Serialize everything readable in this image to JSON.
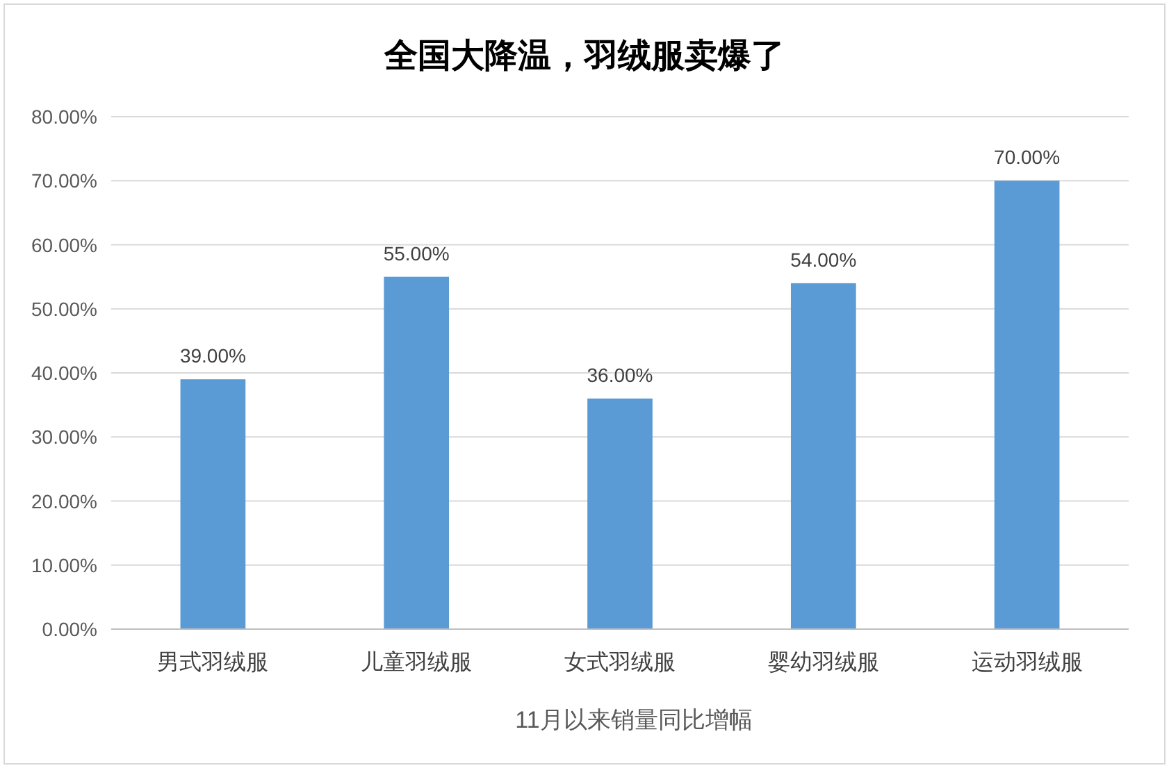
{
  "chart_data": {
    "type": "bar",
    "title": "全国大降温，羽绒服卖爆了",
    "xlabel": "11月以来销量同比增幅",
    "categories": [
      "男式羽绒服",
      "儿童羽绒服",
      "女式羽绒服",
      "婴幼羽绒服",
      "运动羽绒服"
    ],
    "values": [
      39,
      55,
      36,
      54,
      70
    ],
    "color": "#5b9bd5",
    "value_labels": [
      "39.00%",
      "55.00%",
      "36.00%",
      "54.00%",
      "70.00%"
    ],
    "ylim": [
      0,
      80
    ],
    "yticks": [
      {
        "value": 0,
        "label": "0.00%"
      },
      {
        "value": 10,
        "label": "10.00%"
      },
      {
        "value": 20,
        "label": "20.00%"
      },
      {
        "value": 30,
        "label": "30.00%"
      },
      {
        "value": 40,
        "label": "40.00%"
      },
      {
        "value": 50,
        "label": "50.00%"
      },
      {
        "value": 60,
        "label": "60.00%"
      },
      {
        "value": 70,
        "label": "70.00%"
      },
      {
        "value": 80,
        "label": "80.00%"
      }
    ],
    "grid": "y"
  }
}
